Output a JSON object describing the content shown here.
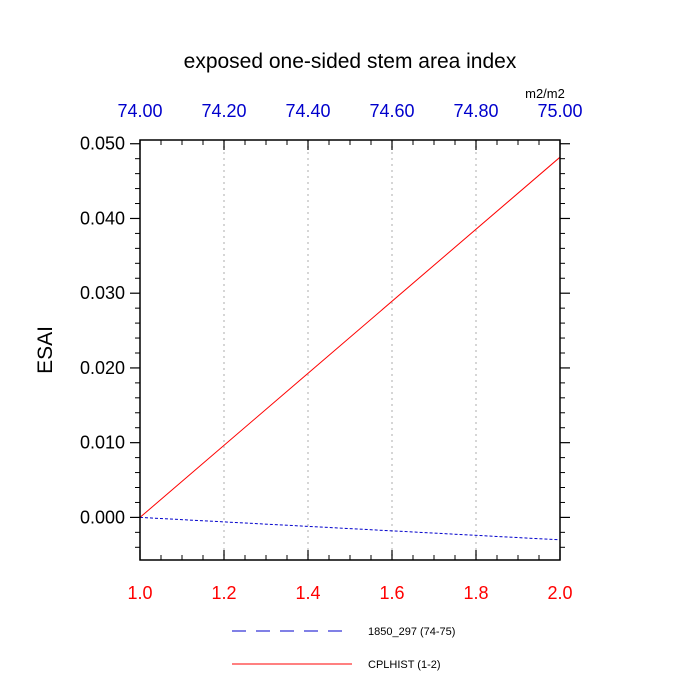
{
  "chart_data": {
    "type": "line",
    "title": "exposed one-sided stem area index",
    "units": "m2/m2",
    "ylabel": "ESAI",
    "ylim": [
      -0.0057,
      0.0505
    ],
    "yticks": [
      "0.000",
      "0.010",
      "0.020",
      "0.030",
      "0.040",
      "0.050"
    ],
    "ytick_values": [
      0.0,
      0.01,
      0.02,
      0.03,
      0.04,
      0.05
    ],
    "bottom_axis": {
      "range": [
        1.0,
        2.0
      ],
      "ticks": [
        "1.0",
        "1.2",
        "1.4",
        "1.6",
        "1.8",
        "2.0"
      ],
      "tick_values": [
        1.0,
        1.2,
        1.4,
        1.6,
        1.8,
        2.0
      ],
      "color": "#ff0000"
    },
    "top_axis": {
      "range": [
        74.0,
        75.0
      ],
      "ticks": [
        "74.00",
        "74.20",
        "74.40",
        "74.60",
        "74.80",
        "75.00"
      ],
      "tick_values": [
        74.0,
        74.2,
        74.4,
        74.6,
        74.8,
        75.0
      ],
      "color": "#0000cc"
    },
    "grid": "vertical dotted",
    "legend_position": "bottom",
    "series": [
      {
        "name": "1850_297 (74-75)",
        "axis": "top",
        "color": "#0000cc",
        "style": "dashed",
        "x": [
          74.0,
          75.0
        ],
        "y": [
          0.0,
          -0.003
        ]
      },
      {
        "name": "CPLHIST (1-2)",
        "axis": "bottom",
        "color": "#ff0000",
        "style": "solid",
        "x": [
          1.0,
          2.0
        ],
        "y": [
          0.0,
          0.0482
        ]
      }
    ]
  }
}
